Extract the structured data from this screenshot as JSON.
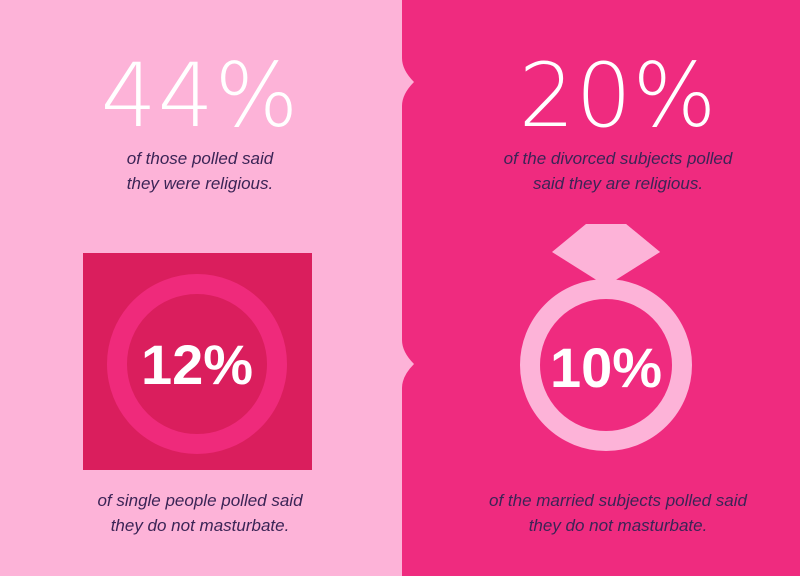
{
  "colors": {
    "left_bg": "#fdb3d8",
    "right_bg": "#ef2b7f",
    "square_bg": "#da1e5d",
    "square_ring": "#ef2a7b",
    "ring_pink": "#fdb3d8",
    "caption_text": "#3b2456"
  },
  "stats": {
    "religious_all": {
      "value": "44%",
      "line1": "of those polled said",
      "line2": "they were religious."
    },
    "religious_divorced": {
      "value": "20%",
      "line1": "of the divorced subjects polled",
      "line2": "said they are religious."
    },
    "single_not_masturbate": {
      "value": "12%",
      "line1": "of single people polled said",
      "line2": "they do not masturbate.",
      "icon": "circle-ring-icon"
    },
    "married_not_masturbate": {
      "value": "10%",
      "line1": "of the married subjects polled said",
      "line2": "they do not masturbate.",
      "icon": "diamond-ring-icon"
    }
  }
}
